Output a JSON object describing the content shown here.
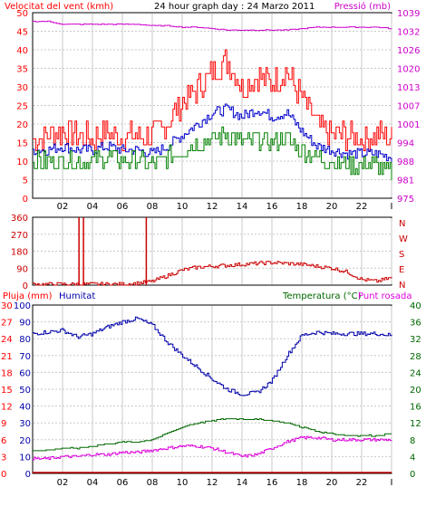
{
  "header": {
    "wind_label": "Velocitat del vent (kmh)",
    "title": "24 hour graph day : 24 Marzo 2011",
    "pressure_label": "Pressió (mb)"
  },
  "panel3_header": {
    "rain_label": "Pluja (mm)",
    "humidity_label": "Humitat",
    "temp_label": "Temperatura (°C)",
    "dew_label": "Punt rosada"
  },
  "colors": {
    "wind_max": "#ff0000",
    "wind_avg": "#0000cc",
    "wind_min": "#008000",
    "pressure": "#cc00cc",
    "direction": "#cc0000",
    "humidity": "#0000aa",
    "temperature": "#006600",
    "dewpoint": "#dd00dd",
    "rain": "#cc0000"
  },
  "chart_data": [
    {
      "type": "line",
      "title": "24 hour graph day : 24 Marzo 2011",
      "x_ticks": [
        "02",
        "04",
        "06",
        "08",
        "10",
        "12",
        "14",
        "16",
        "18",
        "20",
        "22",
        "I"
      ],
      "x_range_hours": [
        0,
        24
      ],
      "ylabel_left": "Velocitat del vent (kmh)",
      "ylim_left": [
        0,
        50
      ],
      "yticks_left": [
        "0",
        "5",
        "10",
        "15",
        "20",
        "25",
        "30",
        "35",
        "40",
        "45",
        "50"
      ],
      "ylabel_right": "Pressió (mb)",
      "yticks_right": [
        "975",
        "981",
        "988",
        "994",
        "1001",
        "1007",
        "1013",
        "1020",
        "1026",
        "1032",
        "1039"
      ],
      "ylim_right": [
        975,
        1039
      ],
      "hours": [
        0,
        1,
        2,
        3,
        4,
        5,
        6,
        7,
        8,
        9,
        10,
        11,
        12,
        13,
        14,
        15,
        16,
        17,
        18,
        19,
        20,
        21,
        22,
        23,
        24
      ],
      "series": [
        {
          "values": [
            16,
            17,
            18,
            17,
            16,
            18,
            16,
            17,
            17,
            20,
            26,
            29,
            34,
            37,
            30,
            33,
            31,
            34,
            27,
            20,
            17,
            17,
            16,
            17,
            16
          ]
        },
        {
          "values": [
            13,
            13,
            14,
            13,
            13,
            14,
            13,
            13,
            12,
            14,
            17,
            20,
            23,
            24,
            22,
            24,
            22,
            23,
            18,
            14,
            13,
            12,
            12,
            12,
            11
          ]
        },
        {
          "values": [
            10,
            10,
            10,
            10,
            10,
            11,
            10,
            10,
            9,
            11,
            13,
            15,
            16,
            17,
            15,
            16,
            15,
            16,
            13,
            11,
            10,
            9,
            9,
            9,
            7
          ]
        },
        {
          "values": [
            1036,
            1036,
            1035,
            1035,
            1035,
            1035,
            1035,
            1035,
            1034.5,
            1034.5,
            1034,
            1034,
            1033.5,
            1033,
            1033,
            1033,
            1033,
            1033,
            1033.5,
            1034,
            1034,
            1034,
            1034,
            1034,
            1033.5
          ]
        }
      ]
    },
    {
      "type": "line",
      "ylim": [
        0,
        360
      ],
      "yticks": [
        "0",
        "90",
        "180",
        "270",
        "360"
      ],
      "direction_labels": [
        "N",
        "W",
        "S",
        "E",
        "N"
      ],
      "hours": [
        0,
        1,
        2,
        3,
        4,
        5,
        6,
        7,
        8,
        9,
        10,
        11,
        12,
        13,
        14,
        15,
        16,
        17,
        18,
        19,
        20,
        21,
        22,
        23,
        24
      ],
      "series": [
        {
          "values": [
            5,
            5,
            5,
            5,
            5,
            5,
            5,
            10,
            20,
            50,
            80,
            95,
            100,
            105,
            110,
            115,
            120,
            115,
            110,
            100,
            90,
            70,
            30,
            20,
            40
          ]
        }
      ],
      "spikes": [
        {
          "hour": 3.1,
          "value": 360
        },
        {
          "hour": 3.4,
          "value": 360
        },
        {
          "hour": 7.6,
          "value": 360
        }
      ]
    },
    {
      "type": "line",
      "ylabel_left_outer": "Pluja (mm)",
      "yticks_rain": [
        "0",
        "3",
        "6",
        "9",
        "12",
        "15",
        "18",
        "21",
        "24",
        "27",
        "30"
      ],
      "ylabel_left_inner": "Humitat",
      "yticks_humidity": [
        "0",
        "10",
        "20",
        "30",
        "40",
        "50",
        "60",
        "70",
        "80",
        "90",
        "100"
      ],
      "ylabel_right": "Temperatura (°C) Punt rosada",
      "yticks_right": [
        "0",
        "4",
        "8",
        "12",
        "16",
        "20",
        "24",
        "28",
        "32",
        "36",
        "40"
      ],
      "hours": [
        0,
        1,
        2,
        3,
        4,
        5,
        6,
        7,
        8,
        9,
        10,
        11,
        12,
        13,
        14,
        15,
        16,
        17,
        18,
        19,
        20,
        21,
        22,
        23,
        24
      ],
      "series": [
        {
          "values": [
            83,
            84,
            85,
            81,
            83,
            87,
            90,
            92,
            88,
            78,
            70,
            63,
            56,
            50,
            47,
            48,
            55,
            70,
            82,
            84,
            83,
            83,
            83,
            83,
            82
          ]
        },
        {
          "values": [
            5.5,
            5.5,
            6,
            6,
            6.5,
            7,
            7.5,
            7.5,
            8,
            9.5,
            11,
            12,
            12.5,
            13,
            13,
            12.8,
            12.5,
            12,
            11,
            10,
            9.5,
            9,
            9,
            9,
            9.5
          ]
        },
        {
          "values": [
            3.5,
            3.5,
            4,
            4,
            4.5,
            4.5,
            5,
            5,
            5.5,
            6,
            6.5,
            6.5,
            6,
            5,
            4,
            4.5,
            6,
            7.5,
            8.5,
            8.5,
            8,
            8,
            8,
            8,
            8
          ]
        },
        {
          "values": [
            0,
            0,
            0,
            0,
            0,
            0,
            0,
            0,
            0,
            0,
            0,
            0,
            0,
            0,
            0,
            0,
            0,
            0,
            0,
            0,
            0,
            0,
            0,
            0,
            0
          ]
        }
      ]
    }
  ]
}
